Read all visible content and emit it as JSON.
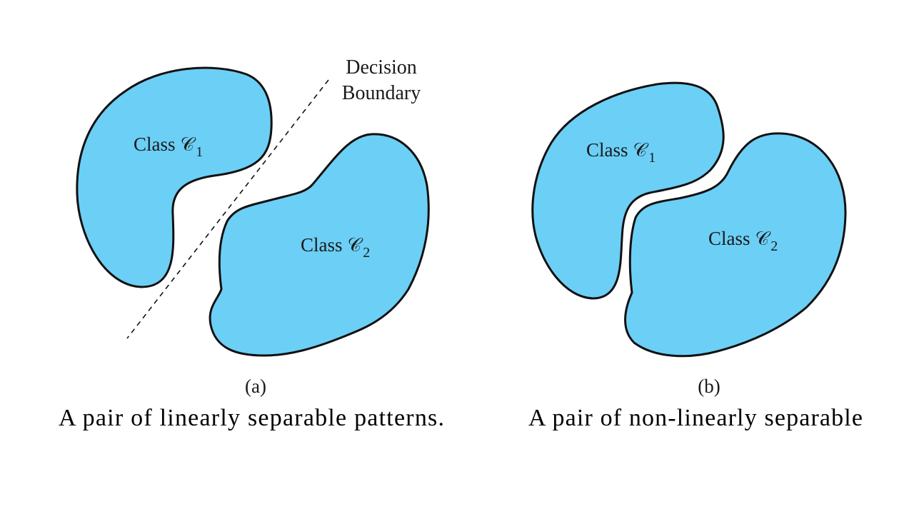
{
  "colors": {
    "region_fill": "#6ccff6",
    "outline": "#111111",
    "text": "#1a1a1a"
  },
  "panel_a": {
    "tag": "(a)",
    "class_1": {
      "label": "Class",
      "symbol": "𝒞",
      "subscript": "1"
    },
    "class_2": {
      "label": "Class",
      "symbol": "𝒞",
      "subscript": "2"
    },
    "boundary_label_line1": "Decision",
    "boundary_label_line2": "Boundary",
    "caption": "A pair of linearly separable patterns."
  },
  "panel_b": {
    "tag": "(b)",
    "class_1": {
      "label": "Class",
      "symbol": "𝒞",
      "subscript": "1"
    },
    "class_2": {
      "label": "Class",
      "symbol": "𝒞",
      "subscript": "2"
    },
    "caption": "A pair of non-linearly separable"
  }
}
